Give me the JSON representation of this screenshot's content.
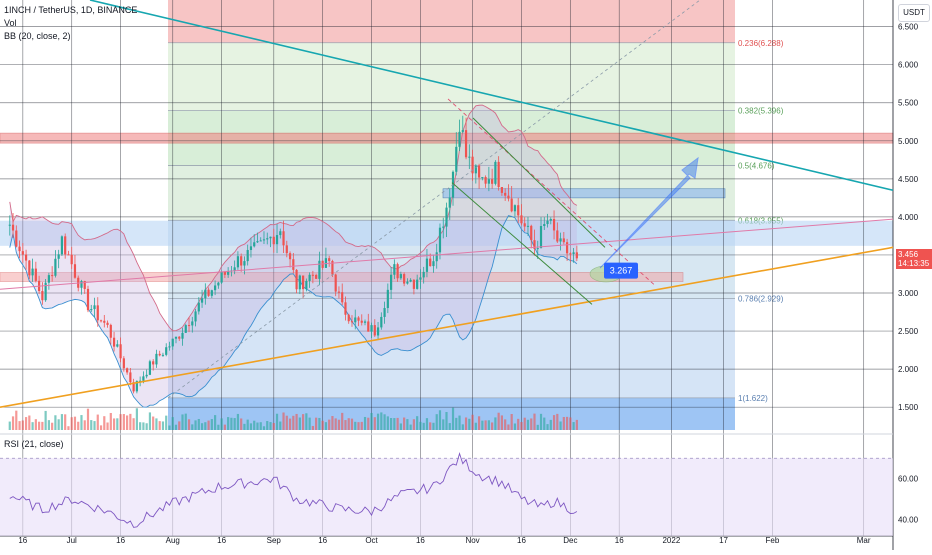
{
  "header": {
    "symbol_line": "1INCH / TetherUS, 1D, BINANCE",
    "vol_label": "Vol",
    "bb_label": "BB (20, close, 2)",
    "currency": "USDT",
    "rsi_label": "RSI (21, close)"
  },
  "price_tags": {
    "last_price": "3.456",
    "countdown": "14:13:35",
    "box_label": "3.267"
  },
  "colors": {
    "bull": "#26a69a",
    "bear": "#ef5350",
    "bb_band": "#d36b8a",
    "fib_red": "#f7c5c5",
    "fib_green": "#d8eed8",
    "fib_blue": "#c8dcf6",
    "trend_teal": "#16a6b0",
    "trend_orange": "#f0a020",
    "label_blue": "#2962ff"
  },
  "chart_data": [
    {
      "type": "candlestick",
      "title": "1INCH / TetherUS, 1D, BINANCE",
      "ylabel": "USDT",
      "ylim": [
        1.2,
        6.85
      ],
      "yticks": [
        1.5,
        2.0,
        2.5,
        3.0,
        3.5,
        4.0,
        4.5,
        5.0,
        5.5,
        6.0,
        6.5
      ],
      "ytick_labels": [
        "1.500",
        "2.000",
        "2.500",
        "3.000",
        "3.500",
        "4.000",
        "4.500",
        "5.000",
        "5.500",
        "6.000",
        "6.500"
      ],
      "xticks": [
        {
          "label": "16",
          "x": "2021-06-16"
        },
        {
          "label": "Jul",
          "x": "2021-07-01"
        },
        {
          "label": "16",
          "x": "2021-07-16"
        },
        {
          "label": "Aug",
          "x": "2021-08-01"
        },
        {
          "label": "16",
          "x": "2021-08-16"
        },
        {
          "label": "Sep",
          "x": "2021-09-01"
        },
        {
          "label": "16",
          "x": "2021-09-16"
        },
        {
          "label": "Oct",
          "x": "2021-10-01"
        },
        {
          "label": "16",
          "x": "2021-10-16"
        },
        {
          "label": "Nov",
          "x": "2021-11-01"
        },
        {
          "label": "16",
          "x": "2021-11-16"
        },
        {
          "label": "Dec",
          "x": "2021-12-01"
        },
        {
          "label": "16",
          "x": "2021-12-16"
        },
        {
          "label": "2022",
          "x": "2022-01-01"
        },
        {
          "label": "17",
          "x": "2022-01-17"
        },
        {
          "label": "Feb",
          "x": "2022-02-01"
        },
        {
          "label": "Mar",
          "x": "2022-03-01"
        }
      ],
      "price_anchors": [
        {
          "date": "2021-06-12",
          "close": 3.9
        },
        {
          "date": "2021-06-22",
          "close": 2.95
        },
        {
          "date": "2021-06-28",
          "close": 3.7
        },
        {
          "date": "2021-07-06",
          "close": 2.85
        },
        {
          "date": "2021-07-12",
          "close": 2.55
        },
        {
          "date": "2021-07-20",
          "close": 1.75
        },
        {
          "date": "2021-07-26",
          "close": 2.1
        },
        {
          "date": "2021-08-02",
          "close": 2.4
        },
        {
          "date": "2021-08-10",
          "close": 2.9
        },
        {
          "date": "2021-08-20",
          "close": 3.4
        },
        {
          "date": "2021-08-28",
          "close": 3.6
        },
        {
          "date": "2021-09-03",
          "close": 3.85
        },
        {
          "date": "2021-09-08",
          "close": 3.1
        },
        {
          "date": "2021-09-18",
          "close": 3.4
        },
        {
          "date": "2021-09-22",
          "close": 2.8
        },
        {
          "date": "2021-09-27",
          "close": 2.6
        },
        {
          "date": "2021-10-02",
          "close": 2.5
        },
        {
          "date": "2021-10-08",
          "close": 3.3
        },
        {
          "date": "2021-10-14",
          "close": 3.15
        },
        {
          "date": "2021-10-20",
          "close": 3.5
        },
        {
          "date": "2021-10-24",
          "close": 4.15
        },
        {
          "date": "2021-10-26",
          "close": 4.6
        },
        {
          "date": "2021-10-28",
          "close": 5.3
        },
        {
          "date": "2021-10-30",
          "close": 4.8
        },
        {
          "date": "2021-11-03",
          "close": 4.45
        },
        {
          "date": "2021-11-08",
          "close": 4.6
        },
        {
          "date": "2021-11-12",
          "close": 4.3
        },
        {
          "date": "2021-11-16",
          "close": 3.95
        },
        {
          "date": "2021-11-20",
          "close": 3.6
        },
        {
          "date": "2021-11-24",
          "close": 3.95
        },
        {
          "date": "2021-11-28",
          "close": 3.6
        },
        {
          "date": "2021-12-03",
          "close": 3.456
        }
      ],
      "fibonacci": [
        {
          "ratio": "0.236",
          "price": 6.288,
          "label": "0.236(6.288)"
        },
        {
          "ratio": "0.382",
          "price": 5.396,
          "label": "0.382(5.396)"
        },
        {
          "ratio": "0.5",
          "price": 4.676,
          "label": "0.5(4.676)"
        },
        {
          "ratio": "0.618",
          "price": 3.955,
          "label": "0.618(3.955)"
        },
        {
          "ratio": "0.786",
          "price": 2.929,
          "label": "0.786(2.929)"
        },
        {
          "ratio": "1",
          "price": 1.622,
          "label": "1(1.622)"
        }
      ],
      "last_price": 3.456
    },
    {
      "type": "line",
      "title": "RSI (21, close)",
      "ylim": [
        32,
        76
      ],
      "yticks": [
        40,
        60
      ],
      "ytick_labels": [
        "40.00",
        "60.00"
      ],
      "series": [
        {
          "name": "RSI",
          "values": [
            {
              "date": "2021-06-12",
              "y": 52
            },
            {
              "date": "2021-06-22",
              "y": 45
            },
            {
              "date": "2021-07-01",
              "y": 50
            },
            {
              "date": "2021-07-12",
              "y": 44
            },
            {
              "date": "2021-07-20",
              "y": 38
            },
            {
              "date": "2021-08-01",
              "y": 48
            },
            {
              "date": "2021-08-15",
              "y": 56
            },
            {
              "date": "2021-09-01",
              "y": 60
            },
            {
              "date": "2021-09-08",
              "y": 50
            },
            {
              "date": "2021-09-22",
              "y": 45
            },
            {
              "date": "2021-10-01",
              "y": 44
            },
            {
              "date": "2021-10-10",
              "y": 52
            },
            {
              "date": "2021-10-20",
              "y": 56
            },
            {
              "date": "2021-10-28",
              "y": 70
            },
            {
              "date": "2021-11-03",
              "y": 62
            },
            {
              "date": "2021-11-10",
              "y": 58
            },
            {
              "date": "2021-11-16",
              "y": 50
            },
            {
              "date": "2021-11-22",
              "y": 46
            },
            {
              "date": "2021-11-26",
              "y": 49
            },
            {
              "date": "2021-12-03",
              "y": 44
            }
          ]
        }
      ]
    }
  ]
}
